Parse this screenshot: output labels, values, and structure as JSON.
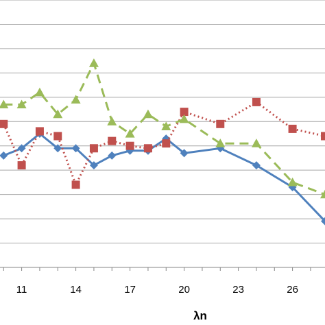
{
  "chart_data": {
    "type": "line",
    "title": "",
    "xlabel": "λn",
    "ylabel": "",
    "grid": true,
    "legend": "none",
    "xlim": [
      9.8,
      27.8
    ],
    "ylim": [
      0,
      11
    ],
    "x_ticks": [
      11,
      14,
      17,
      20,
      23,
      26
    ],
    "series": [
      {
        "color": "#4F81BD",
        "marker": "diamond",
        "line_style": "solid",
        "points": [
          [
            10,
            4.6
          ],
          [
            11,
            4.9
          ],
          [
            12,
            5.5
          ],
          [
            13,
            4.9
          ],
          [
            14,
            4.9
          ],
          [
            15,
            4.2
          ],
          [
            16,
            4.6
          ],
          [
            17,
            4.8
          ],
          [
            18,
            4.8
          ],
          [
            19,
            5.3
          ],
          [
            20,
            4.7
          ],
          [
            22,
            4.9
          ],
          [
            24,
            4.2
          ],
          [
            26,
            3.3
          ],
          [
            27.8,
            1.9
          ]
        ]
      },
      {
        "color": "#C0504D",
        "marker": "square",
        "line_style": "dotted",
        "points": [
          [
            10,
            5.9
          ],
          [
            11,
            4.2
          ],
          [
            12,
            5.6
          ],
          [
            13,
            5.4
          ],
          [
            14,
            3.4
          ],
          [
            15,
            4.9
          ],
          [
            16,
            5.2
          ],
          [
            17,
            5.0
          ],
          [
            18,
            4.9
          ],
          [
            19,
            5.1
          ],
          [
            20,
            6.4
          ],
          [
            22,
            5.9
          ],
          [
            24,
            6.8
          ],
          [
            26,
            5.7
          ],
          [
            27.8,
            5.4
          ]
        ]
      },
      {
        "color": "#9BBB59",
        "marker": "triangle",
        "line_style": "dashed",
        "points": [
          [
            10,
            6.7
          ],
          [
            11,
            6.7
          ],
          [
            12,
            7.2
          ],
          [
            13,
            6.3
          ],
          [
            14,
            6.9
          ],
          [
            15,
            8.4
          ],
          [
            16,
            6.0
          ],
          [
            17,
            5.5
          ],
          [
            18,
            6.3
          ],
          [
            19,
            5.8
          ],
          [
            20,
            6.1
          ],
          [
            22,
            5.1
          ],
          [
            24,
            5.1
          ],
          [
            26,
            3.5
          ],
          [
            27.8,
            3.0
          ]
        ]
      }
    ]
  }
}
